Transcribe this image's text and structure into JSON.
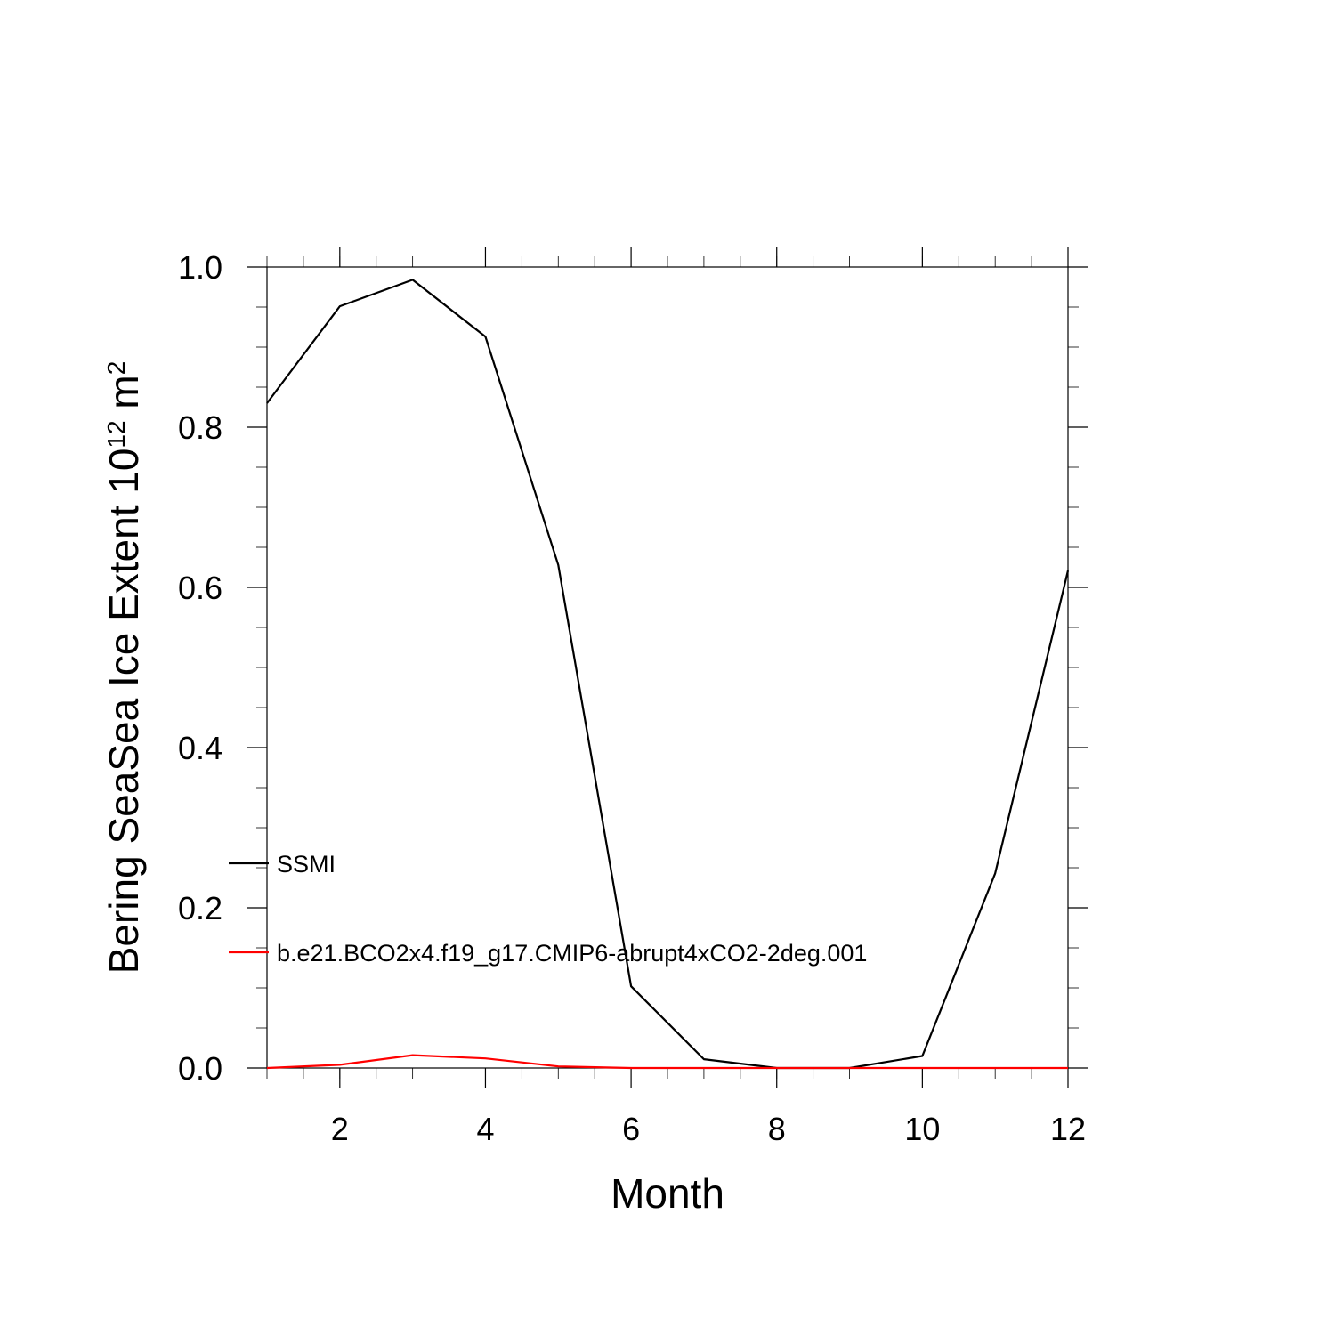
{
  "chart_data": {
    "type": "line",
    "title": "",
    "xlabel": "Month",
    "ylabel": {
      "main": "Bering SeaSea Ice Extent 10",
      "exponent": "12",
      "unit": " m",
      "unit_exponent": "2"
    },
    "xlim": [
      1,
      12
    ],
    "ylim": [
      0,
      1
    ],
    "x_major_ticks": [
      2,
      4,
      6,
      8,
      10,
      12
    ],
    "x_tick_labels": [
      "2",
      "4",
      "6",
      "8",
      "10",
      "12"
    ],
    "y_major_ticks": [
      0,
      0.2,
      0.4,
      0.6,
      0.8,
      1.0
    ],
    "y_tick_labels": [
      "0.0",
      "0.2",
      "0.4",
      "0.6",
      "0.8",
      "1.0"
    ],
    "grid": false,
    "legend_position": "inside-left",
    "x": [
      1,
      2,
      3,
      4,
      5,
      6,
      7,
      8,
      9,
      10,
      11,
      12
    ],
    "series": [
      {
        "name": "SSMI",
        "color": "#000000",
        "values": [
          0.83,
          0.951,
          0.984,
          0.913,
          0.628,
          0.102,
          0.011,
          0.0,
          0.0,
          0.015,
          0.243,
          0.621
        ]
      },
      {
        "name": "b.e21.BCO2x4.f19_g17.CMIP6-abrupt4xCO2-2deg.001",
        "color": "#ff0000",
        "values": [
          0.0,
          0.004,
          0.016,
          0.012,
          0.002,
          0.0,
          0.0,
          0.0,
          0.0,
          0.0,
          0.0,
          0.0
        ]
      }
    ]
  }
}
